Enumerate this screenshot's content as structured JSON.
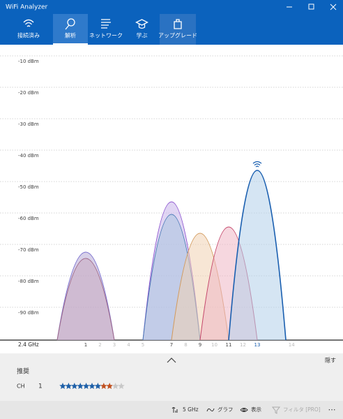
{
  "window": {
    "title": "WiFi Analyzer"
  },
  "tabs": [
    {
      "label": "接続済み",
      "state": "normal"
    },
    {
      "label": "解析",
      "state": "selected"
    },
    {
      "label": "ネットワーク",
      "state": "normal"
    },
    {
      "label": "学ぶ",
      "state": "normal"
    },
    {
      "label": "アップグレード",
      "state": "accent"
    }
  ],
  "chart_data": {
    "type": "spectrum",
    "band_label": "2.4 GHz",
    "ylim": [
      -100,
      -10
    ],
    "yticks": [
      {
        "value": -10,
        "label": "-10 dBm"
      },
      {
        "value": -20,
        "label": "-20 dBm"
      },
      {
        "value": -30,
        "label": "-30 dBm"
      },
      {
        "value": -40,
        "label": "-40 dBm"
      },
      {
        "value": -50,
        "label": "-50 dBm"
      },
      {
        "value": -60,
        "label": "-60 dBm"
      },
      {
        "value": -70,
        "label": "-70 dBm"
      },
      {
        "value": -80,
        "label": "-80 dBm"
      },
      {
        "value": -90,
        "label": "-90 dBm"
      }
    ],
    "xlim": [
      -5,
      19
    ],
    "xticks": [
      1,
      2,
      3,
      4,
      5,
      7,
      8,
      9,
      10,
      11,
      12,
      13,
      14
    ],
    "grid": true,
    "networks": [
      {
        "channel": 1,
        "signal": -72,
        "color": "#7a70cf",
        "fill": "#b6a9d6"
      },
      {
        "channel": 1,
        "signal": -74,
        "color": "#a06a8a",
        "fill": "#c9a9bf"
      },
      {
        "channel": 7,
        "signal": -56,
        "color": "#8b52cf",
        "fill": "#c7b3ea"
      },
      {
        "channel": 7,
        "signal": -60,
        "color": "#4a7bb6",
        "fill": "#a9c4df"
      },
      {
        "channel": 9,
        "signal": -66,
        "color": "#d29a5c",
        "fill": "#f1d2b3"
      },
      {
        "channel": 11,
        "signal": -64,
        "color": "#c4466a",
        "fill": "#eeb7c4"
      },
      {
        "channel": 13,
        "signal": -46,
        "color": "#1a5fb0",
        "fill": "#b3cfea",
        "connected": true
      }
    ]
  },
  "panel": {
    "hide_label": "隠す",
    "recommend_label": "推奨",
    "channel_label": "CH",
    "channel": 1,
    "rating": {
      "good": 7,
      "fair": 2,
      "empty": 2
    }
  },
  "footer": {
    "items": [
      "5 GHz",
      "グラフ",
      "表示",
      "フィルタ [PRO]"
    ],
    "disabled": [
      false,
      false,
      false,
      true
    ]
  }
}
